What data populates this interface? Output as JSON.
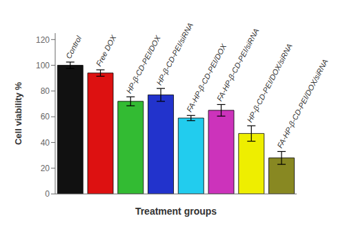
{
  "chart_data": {
    "type": "bar",
    "xlabel": "Treatment groups",
    "ylabel": "Cell viability %",
    "categories": [
      "Control",
      "Free DOX",
      "HP-β-CD-PEI/DOX",
      "HP-β-CD-PEI/siRNA",
      "FA-HP-β-CD-PEI/DOX",
      "FA-HP-β-CD-PEI/siRNA",
      "HP-β-CD-PEI/DOX/siRNA",
      "FA-HP-β-CD-PEI/DOX/siRNA"
    ],
    "values": [
      100,
      94,
      72,
      77,
      59,
      65,
      47,
      28
    ],
    "errors": [
      2.5,
      2.5,
      3.5,
      5.0,
      2.0,
      4.5,
      6.0,
      5.0
    ],
    "colors": [
      "#111111",
      "#dd1111",
      "#33bb33",
      "#2233cc",
      "#22ccee",
      "#cc33bb",
      "#eeee00",
      "#888822"
    ],
    "ylim": [
      0,
      125
    ],
    "yticks": [
      0,
      20,
      40,
      60,
      80,
      100,
      120
    ],
    "grid": false,
    "tick_labels": "y"
  }
}
